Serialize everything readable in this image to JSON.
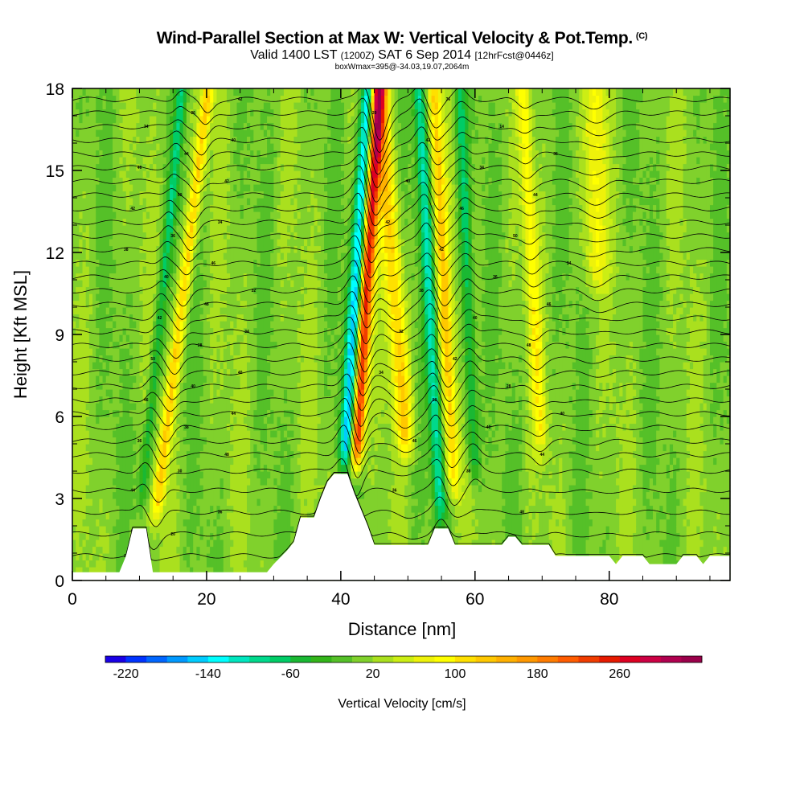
{
  "header": {
    "title": "Wind-Parallel Section at Max W: Vertical Velocity & Pot.Temp.",
    "copyright": "(C)",
    "valid_prefix": "Valid 1400 LST",
    "valid_utc": "(1200Z)",
    "valid_date": "SAT 6 Sep 2014",
    "forecast": "[12hrFcst@0446z]",
    "box_info": "boxWmax=395@-34.03,19.07,2064m"
  },
  "chart_data": {
    "type": "heatmap",
    "title": "Wind-Parallel Section at Max W: Vertical Velocity & Pot.Temp.",
    "xlabel": "Distance [nm]",
    "ylabel": "Height [Kft MSL]",
    "xlim": [
      0,
      98
    ],
    "ylim": [
      0,
      18
    ],
    "x_ticks": [
      0,
      20,
      40,
      60,
      80
    ],
    "y_ticks": [
      0,
      3,
      6,
      9,
      12,
      15,
      18
    ],
    "colorbar": {
      "label": "Vertical Velocity [cm/s]",
      "min": -240,
      "max": 340,
      "step": 20,
      "tick_labels": [
        "-220",
        "-140",
        "-60",
        "20",
        "100",
        "180",
        "260"
      ],
      "tick_values": [
        -220,
        -140,
        -60,
        20,
        100,
        180,
        260
      ],
      "colors": [
        "#1a00e6",
        "#0033ff",
        "#0066ff",
        "#0099ff",
        "#00ccff",
        "#00ffff",
        "#00e6bf",
        "#00d98c",
        "#00cc66",
        "#1ab833",
        "#33b51a",
        "#55c028",
        "#80d12c",
        "#aae01e",
        "#ccee14",
        "#eef20a",
        "#ffff00",
        "#ffe000",
        "#ffc800",
        "#ffb000",
        "#ff9800",
        "#ff7c00",
        "#ff5c00",
        "#f03c00",
        "#e61a00",
        "#dd0022",
        "#cc0044",
        "#b0004f",
        "#9a004a"
      ]
    },
    "background_w": 10,
    "features": [
      {
        "name": "updraft",
        "center_nm": 12,
        "base_kft": 1.5,
        "width_nm": 0.9,
        "peak_cms": 110,
        "tilt": 0.5
      },
      {
        "name": "downdraft",
        "center_nm": 10,
        "base_kft": 2,
        "width_nm": 0.8,
        "peak_cms": -70,
        "tilt": 0.4
      },
      {
        "name": "updraft",
        "center_nm": 42,
        "base_kft": 3.5,
        "width_nm": 1.0,
        "peak_cms": 260,
        "tilt": 0.25
      },
      {
        "name": "downdraft",
        "center_nm": 40.5,
        "base_kft": 3.5,
        "width_nm": 1.1,
        "peak_cms": -170,
        "tilt": 0.25
      },
      {
        "name": "updraft",
        "center_nm": 50,
        "base_kft": 4,
        "width_nm": 1.4,
        "peak_cms": 110,
        "tilt": -0.3
      },
      {
        "name": "downdraft",
        "center_nm": 55,
        "base_kft": 1.5,
        "width_nm": 0.9,
        "peak_cms": -110,
        "tilt": -0.2
      },
      {
        "name": "updraft",
        "center_nm": 57,
        "base_kft": 2.5,
        "width_nm": 1.0,
        "peak_cms": 110,
        "tilt": -0.2
      },
      {
        "name": "downdraft",
        "center_nm": 60,
        "base_kft": 3,
        "width_nm": 0.9,
        "peak_cms": -80,
        "tilt": -0.15
      },
      {
        "name": "updraft",
        "center_nm": 70,
        "base_kft": 4,
        "width_nm": 1.0,
        "peak_cms": 70,
        "tilt": -0.2
      },
      {
        "name": "updraft",
        "center_nm": 78,
        "base_kft": 10,
        "width_nm": 1.6,
        "peak_cms": 65,
        "tilt": 0.0
      }
    ],
    "terrain_kft": [
      [
        0,
        0.3
      ],
      [
        7,
        0.3
      ],
      [
        8,
        0.9
      ],
      [
        9,
        1.9
      ],
      [
        11,
        1.9
      ],
      [
        12,
        0.3
      ],
      [
        22,
        0.3
      ],
      [
        29,
        0.3
      ],
      [
        30,
        0.6
      ],
      [
        32,
        1.1
      ],
      [
        33,
        1.4
      ],
      [
        34,
        2.3
      ],
      [
        36,
        2.3
      ],
      [
        37,
        3.0
      ],
      [
        38,
        3.6
      ],
      [
        39,
        3.9
      ],
      [
        41,
        3.9
      ],
      [
        42,
        3.2
      ],
      [
        43,
        2.6
      ],
      [
        44,
        2.0
      ],
      [
        45,
        1.3
      ],
      [
        48,
        1.3
      ],
      [
        53,
        1.3
      ],
      [
        54,
        1.9
      ],
      [
        56,
        1.9
      ],
      [
        57,
        1.3
      ],
      [
        64,
        1.3
      ],
      [
        65,
        1.6
      ],
      [
        66,
        1.6
      ],
      [
        67,
        1.3
      ],
      [
        71,
        1.3
      ],
      [
        72,
        0.9
      ],
      [
        80,
        0.9
      ],
      [
        81,
        0.6
      ],
      [
        82,
        0.9
      ],
      [
        85,
        0.9
      ],
      [
        86,
        0.6
      ],
      [
        90,
        0.6
      ],
      [
        91,
        0.9
      ],
      [
        93,
        0.9
      ],
      [
        94,
        0.6
      ],
      [
        95,
        0.9
      ],
      [
        98,
        0.9
      ]
    ],
    "theta_contours": {
      "levels_kft": [
        0.9,
        1.7,
        2.5,
        3.3,
        4.0,
        4.6,
        5.1,
        5.6,
        6.1,
        6.6,
        7.1,
        7.6,
        8.1,
        8.6,
        9.1,
        9.6,
        10.1,
        10.6,
        11.1,
        11.6,
        12.1,
        12.6,
        13.1,
        13.6,
        14.1,
        14.6,
        15.1,
        15.6,
        16.1,
        16.6,
        17.1,
        17.6
      ],
      "labels": [
        "14",
        "20",
        "36",
        "44",
        "30",
        "48",
        "36",
        "38",
        "44",
        "46",
        "40",
        "40",
        "50",
        "28",
        "34",
        "42",
        "48",
        "32",
        "40",
        "46",
        "38",
        "36",
        "34",
        "42",
        "50",
        "42",
        "46",
        "44",
        "40",
        "34",
        "36",
        "42"
      ]
    }
  }
}
